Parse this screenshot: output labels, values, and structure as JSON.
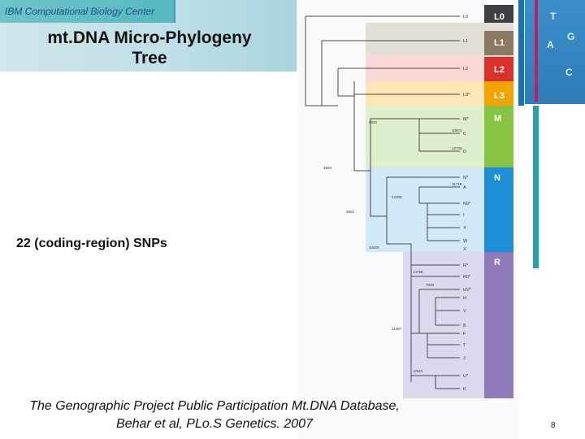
{
  "header": {
    "center_name": "IBM Computational Biology Center",
    "title_line1": "mt.DNA Micro-Phylogeny",
    "title_line2": "Tree"
  },
  "annotation": "22 (coding-region) SNPs",
  "citation": {
    "line1": "The Genographic Project Public Participation Mt.DNA Database,",
    "line2": "Behar et al, PLo.S Genetics. 2007"
  },
  "page_number": "8",
  "tree": {
    "haplogroups": [
      {
        "label": "L0",
        "color": "#3f3f43"
      },
      {
        "label": "L1",
        "color": "#8b7a62"
      },
      {
        "label": "L2",
        "color": "#d8302b"
      },
      {
        "label": "L3",
        "color": "#f2a400"
      },
      {
        "label": "M",
        "color": "#86c441"
      },
      {
        "label": "N",
        "color": "#1c8fd4"
      },
      {
        "label": "R",
        "color": "#8e7ab8"
      }
    ],
    "leaves": [
      "L0",
      "L1",
      "L2",
      "L3*",
      "M*",
      "C",
      "D",
      "N*",
      "A",
      "N9*",
      "I",
      "Y",
      "W",
      "X",
      "R*",
      "R0*",
      "HV*",
      "H",
      "V",
      "B",
      "F",
      "T",
      "J",
      "U*",
      "K"
    ],
    "nodes": [
      "9540",
      "3594",
      "3552",
      "10400",
      "10873",
      "12705",
      "11719",
      "12308",
      "14766",
      "7028",
      "11467",
      "12612"
    ]
  },
  "right_panel": {
    "letters": [
      "T",
      "G",
      "A",
      "C"
    ],
    "accent_colors": [
      "#1c6fb2",
      "#2c9ea2",
      "#c21d5a"
    ]
  }
}
